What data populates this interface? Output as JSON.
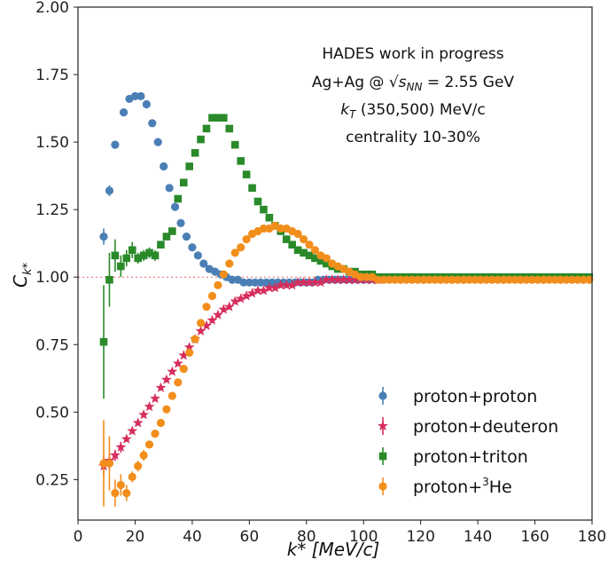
{
  "chart_data": {
    "type": "scatter",
    "xlabel": "k* [MeV/c]",
    "ylabel": "C_k*",
    "xlim": [
      0,
      180
    ],
    "ylim": [
      0.1,
      2.0
    ],
    "xticks": [
      "0",
      "20",
      "40",
      "60",
      "80",
      "100",
      "120",
      "140",
      "160",
      "180"
    ],
    "yticks": [
      "0.25",
      "0.50",
      "0.75",
      "1.00",
      "1.25",
      "1.50",
      "1.75",
      "2.00"
    ],
    "reference_line": 1.0,
    "annotation": [
      "HADES work in progress",
      "Ag+Ag @ √s_NN = 2.55 GeV",
      "k_T (350,500) MeV/c",
      "centrality 10-30%"
    ],
    "legend_position": "lower-right",
    "series": [
      {
        "name": "proton+proton",
        "marker": "circle",
        "color": "#4a7fb5",
        "x": [
          9,
          11,
          13,
          16,
          18,
          20,
          22,
          24,
          26,
          28,
          30,
          32,
          34,
          36,
          38,
          40,
          42,
          44,
          46,
          48,
          50,
          52,
          54,
          56,
          58,
          60,
          62,
          64,
          66,
          68,
          70,
          72,
          74,
          76,
          78,
          80,
          82,
          84,
          86,
          88,
          90,
          92,
          94,
          96,
          98,
          100,
          102,
          104
        ],
        "y": [
          1.15,
          1.32,
          1.49,
          1.61,
          1.66,
          1.67,
          1.67,
          1.64,
          1.57,
          1.5,
          1.41,
          1.33,
          1.26,
          1.2,
          1.15,
          1.11,
          1.08,
          1.05,
          1.03,
          1.02,
          1.01,
          1.0,
          0.99,
          0.99,
          0.98,
          0.98,
          0.98,
          0.98,
          0.98,
          0.98,
          0.98,
          0.98,
          0.98,
          0.98,
          0.98,
          0.98,
          0.98,
          0.99,
          0.99,
          0.99,
          0.99,
          0.99,
          0.99,
          0.99,
          0.99,
          0.99,
          0.99,
          0.99
        ],
        "yerr": [
          0.03,
          0.02,
          0.01,
          0.01,
          0.01,
          0.01,
          0.01,
          0.01,
          0.01,
          0.01,
          0.01,
          0.01,
          0.01,
          0.01,
          0.01,
          0.01,
          0.01,
          0.01,
          0.01,
          0.01,
          0.01,
          0.01,
          0.01,
          0.01,
          0.01,
          0.01,
          0.01,
          0.01,
          0.01,
          0.01,
          0.01,
          0.01,
          0.01,
          0.01,
          0.01,
          0.01,
          0.01,
          0.01,
          0.01,
          0.01,
          0.01,
          0.01,
          0.01,
          0.01,
          0.01,
          0.01,
          0.01,
          0.01
        ]
      },
      {
        "name": "proton+deuteron",
        "marker": "star",
        "color": "#d62d5c",
        "x": [
          9,
          11,
          13,
          15,
          17,
          19,
          21,
          23,
          25,
          27,
          29,
          31,
          33,
          35,
          37,
          39,
          41,
          43,
          45,
          47,
          49,
          51,
          53,
          55,
          57,
          59,
          61,
          63,
          65,
          67,
          69,
          71,
          73,
          75,
          77,
          79,
          81,
          83,
          85,
          87,
          89,
          91,
          93,
          95,
          97,
          99,
          101,
          103,
          105
        ],
        "y": [
          0.3,
          0.32,
          0.34,
          0.37,
          0.4,
          0.43,
          0.46,
          0.49,
          0.52,
          0.55,
          0.59,
          0.62,
          0.65,
          0.68,
          0.71,
          0.74,
          0.77,
          0.8,
          0.82,
          0.84,
          0.86,
          0.88,
          0.89,
          0.91,
          0.92,
          0.93,
          0.94,
          0.95,
          0.95,
          0.96,
          0.96,
          0.97,
          0.97,
          0.97,
          0.98,
          0.98,
          0.98,
          0.98,
          0.98,
          0.99,
          0.99,
          0.99,
          0.99,
          0.99,
          0.99,
          0.99,
          0.99,
          0.99,
          0.99
        ],
        "yerr": [
          0.04,
          0.03,
          0.02,
          0.02,
          0.01,
          0.01,
          0.01,
          0.01,
          0.01,
          0.01,
          0.01,
          0.01,
          0.01,
          0.01,
          0.01,
          0.01,
          0.01,
          0.01,
          0.01,
          0.01,
          0.01,
          0.01,
          0.01,
          0.01,
          0.01,
          0.01,
          0.01,
          0.01,
          0.01,
          0.01,
          0.01,
          0.01,
          0.01,
          0.01,
          0.01,
          0.01,
          0.01,
          0.01,
          0.01,
          0.01,
          0.01,
          0.01,
          0.01,
          0.01,
          0.01,
          0.01,
          0.01,
          0.01,
          0.01
        ]
      },
      {
        "name": "proton+triton",
        "marker": "square",
        "color": "#2a8a2a",
        "x": [
          9,
          11,
          13,
          15,
          17,
          19,
          21,
          23,
          25,
          27,
          29,
          31,
          33,
          35,
          37,
          39,
          41,
          43,
          45,
          47,
          49,
          51,
          53,
          55,
          57,
          59,
          61,
          63,
          65,
          67,
          69,
          71,
          73,
          75,
          77,
          79,
          81,
          83,
          85,
          87,
          89,
          91,
          93,
          95,
          97,
          99,
          101,
          103,
          105,
          107,
          109,
          111,
          113,
          115,
          117,
          119,
          121,
          123,
          125,
          127,
          129,
          131,
          133,
          135,
          137,
          139,
          141,
          143,
          145,
          147,
          149,
          151,
          153,
          155,
          157,
          159,
          161,
          163,
          165,
          167,
          169,
          171,
          173,
          175,
          177,
          179
        ],
        "y": [
          0.76,
          0.99,
          1.08,
          1.04,
          1.07,
          1.1,
          1.07,
          1.08,
          1.09,
          1.08,
          1.12,
          1.15,
          1.17,
          1.29,
          1.35,
          1.41,
          1.46,
          1.51,
          1.55,
          1.59,
          1.59,
          1.59,
          1.55,
          1.49,
          1.43,
          1.38,
          1.33,
          1.28,
          1.25,
          1.22,
          1.19,
          1.17,
          1.14,
          1.12,
          1.1,
          1.09,
          1.08,
          1.07,
          1.06,
          1.05,
          1.04,
          1.03,
          1.03,
          1.02,
          1.02,
          1.01,
          1.01,
          1.01,
          1.0,
          1.0,
          1.0,
          1.0,
          1.0,
          1.0,
          1.0,
          1.0,
          1.0,
          1.0,
          1.0,
          1.0,
          1.0,
          1.0,
          1.0,
          1.0,
          1.0,
          1.0,
          1.0,
          1.0,
          1.0,
          1.0,
          1.0,
          1.0,
          1.0,
          1.0,
          1.0,
          1.0,
          1.0,
          1.0,
          1.0,
          1.0,
          1.0,
          1.0,
          1.0,
          1.0,
          1.0,
          1.0
        ],
        "yerr": [
          0.21,
          0.1,
          0.06,
          0.04,
          0.03,
          0.03,
          0.02,
          0.02,
          0.02,
          0.02,
          0.01,
          0.01,
          0.01,
          0.01,
          0.01,
          0.01,
          0.01,
          0.01,
          0.01,
          0.01,
          0.01,
          0.01,
          0.01,
          0.01,
          0.01,
          0.01,
          0.01,
          0.01,
          0.01,
          0.01,
          0.01,
          0.01,
          0.01,
          0.01,
          0.01,
          0.01,
          0.01,
          0.01,
          0.01,
          0.01,
          0.01,
          0.01,
          0.01,
          0.01,
          0.01,
          0.01,
          0.01,
          0.01,
          0.01,
          0.01,
          0.01,
          0.01,
          0.01,
          0.01,
          0.01,
          0.01,
          0.01,
          0.01,
          0.01,
          0.01,
          0.01,
          0.01,
          0.01,
          0.01,
          0.01,
          0.01,
          0.01,
          0.01,
          0.01,
          0.01,
          0.01,
          0.01,
          0.01,
          0.01,
          0.01,
          0.01,
          0.01,
          0.01,
          0.01,
          0.01,
          0.01,
          0.01,
          0.01,
          0.01,
          0.01,
          0.01
        ]
      },
      {
        "name": "proton+",
        "name_sup": "3",
        "name_suffix": "He",
        "marker": "circle",
        "color": "#f28e1c",
        "x": [
          9,
          11,
          13,
          15,
          17,
          19,
          21,
          23,
          25,
          27,
          29,
          31,
          33,
          35,
          37,
          39,
          41,
          43,
          45,
          47,
          49,
          51,
          53,
          55,
          57,
          59,
          61,
          63,
          65,
          67,
          69,
          71,
          73,
          75,
          77,
          79,
          81,
          83,
          85,
          87,
          89,
          91,
          93,
          95,
          97,
          99,
          101,
          103,
          105,
          107,
          109,
          111,
          113,
          115,
          117,
          119,
          121,
          123,
          125,
          127,
          129,
          131,
          133,
          135,
          137,
          139,
          141,
          143,
          145,
          147,
          149,
          151,
          153,
          155,
          157,
          159,
          161,
          163,
          165,
          167,
          169,
          171,
          173,
          175,
          177,
          179
        ],
        "y": [
          0.31,
          0.31,
          0.2,
          0.23,
          0.2,
          0.26,
          0.3,
          0.34,
          0.38,
          0.42,
          0.46,
          0.51,
          0.56,
          0.61,
          0.66,
          0.72,
          0.77,
          0.83,
          0.89,
          0.93,
          0.97,
          1.01,
          1.05,
          1.09,
          1.11,
          1.14,
          1.16,
          1.17,
          1.18,
          1.18,
          1.19,
          1.18,
          1.18,
          1.17,
          1.16,
          1.14,
          1.12,
          1.1,
          1.08,
          1.07,
          1.05,
          1.04,
          1.03,
          1.02,
          1.01,
          1.0,
          1.0,
          1.0,
          0.99,
          0.99,
          0.99,
          0.99,
          0.99,
          0.99,
          0.99,
          0.99,
          0.99,
          0.99,
          0.99,
          0.99,
          0.99,
          0.99,
          0.99,
          0.99,
          0.99,
          0.99,
          0.99,
          0.99,
          0.99,
          0.99,
          0.99,
          0.99,
          0.99,
          0.99,
          0.99,
          0.99,
          0.99,
          0.99,
          0.99,
          0.99,
          0.99,
          0.99,
          0.99,
          0.99,
          0.99,
          0.99
        ],
        "yerr": [
          0.16,
          0.1,
          0.05,
          0.04,
          0.03,
          0.02,
          0.02,
          0.02,
          0.01,
          0.01,
          0.01,
          0.01,
          0.01,
          0.01,
          0.01,
          0.01,
          0.01,
          0.01,
          0.01,
          0.01,
          0.01,
          0.01,
          0.01,
          0.01,
          0.01,
          0.01,
          0.01,
          0.01,
          0.01,
          0.01,
          0.01,
          0.01,
          0.01,
          0.01,
          0.01,
          0.01,
          0.01,
          0.01,
          0.01,
          0.01,
          0.01,
          0.01,
          0.01,
          0.01,
          0.01,
          0.01,
          0.01,
          0.01,
          0.01,
          0.01,
          0.01,
          0.01,
          0.01,
          0.01,
          0.01,
          0.01,
          0.01,
          0.01,
          0.01,
          0.01,
          0.01,
          0.01,
          0.01,
          0.01,
          0.01,
          0.01,
          0.01,
          0.01,
          0.01,
          0.01,
          0.01,
          0.01,
          0.01,
          0.01,
          0.01,
          0.01,
          0.01,
          0.01,
          0.01,
          0.01,
          0.01,
          0.01,
          0.01,
          0.01,
          0.01,
          0.01
        ]
      }
    ]
  },
  "annotation_lines": {
    "line1": "HADES work in progress",
    "line2_pre": "Ag+Ag @ ",
    "line2_sym": "s",
    "line2_sub": "NN",
    "line2_post": " = 2.55 GeV",
    "line3_sym": "k",
    "line3_sub": "T",
    "line3_post": " (350,500) MeV/c",
    "line4": "centrality 10-30%"
  },
  "axis_titles": {
    "y_sym": "C",
    "y_sub": "k*",
    "x_text": "k* [MeV/c]"
  }
}
